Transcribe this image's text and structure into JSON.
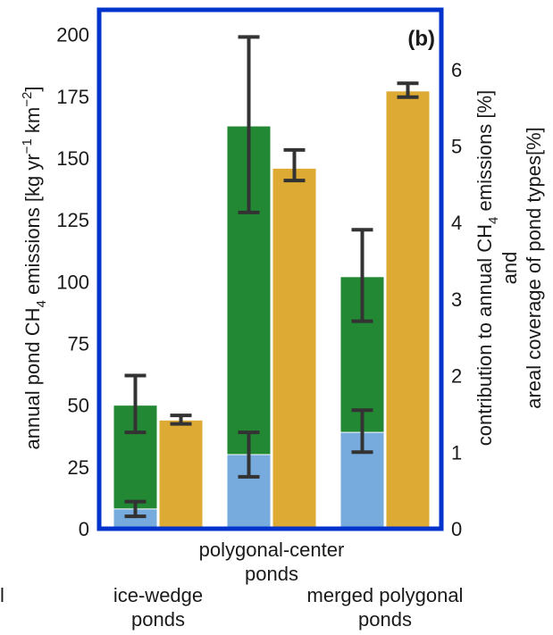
{
  "chart_data": {
    "type": "bar",
    "panel_label": "(b)",
    "categories": [
      {
        "name": "ice-wedge ponds",
        "lines": [
          "ice-wedge",
          "ponds"
        ]
      },
      {
        "name": "polygonal-center ponds",
        "lines": [
          "polygonal-center",
          "ponds"
        ]
      },
      {
        "name": "merged polygonal ponds",
        "lines": [
          "merged polygonal",
          "ponds"
        ]
      }
    ],
    "stray_label": "l",
    "ylabel_left": {
      "main": "annual pond CH",
      "sub": "4",
      "mid": " emissions [kg yr",
      "sup1": "−1",
      "mid2": " km",
      "sup2": "−2",
      "end": "]"
    },
    "ylabel_right_line1": {
      "main": "contribution to annual CH",
      "sub": "4",
      "end": " emissions [%]"
    },
    "ylabel_right_line2": "and",
    "ylabel_right_line3": "areal coverage of pond types[%]",
    "yticks_left": [
      "0",
      "25",
      "50",
      "75",
      "100",
      "125",
      "150",
      "175",
      "200"
    ],
    "yticks_right": [
      "0",
      "1",
      "2",
      "3",
      "4",
      "5",
      "6"
    ],
    "ylim_left": [
      0,
      210
    ],
    "ylim_right": [
      0,
      6.78
    ],
    "series": [
      {
        "axis": "left",
        "color": "#228833",
        "values": [
          50,
          163,
          102
        ],
        "err_low": [
          39,
          128,
          84
        ],
        "err_high": [
          62,
          199,
          121
        ]
      },
      {
        "axis": "left",
        "color": "#77AADD",
        "values": [
          8,
          30,
          39
        ],
        "err_low": [
          5,
          21,
          31
        ],
        "err_high": [
          11,
          39,
          48
        ]
      },
      {
        "axis": "right",
        "color": "#DDAA33",
        "values": [
          1.42,
          4.71,
          5.72
        ],
        "err_low": [
          1.37,
          4.55,
          5.64
        ],
        "err_high": [
          1.48,
          4.95,
          5.82
        ]
      }
    ],
    "colors": {
      "frame": "#0033CC",
      "error_bar": "#333333"
    }
  }
}
